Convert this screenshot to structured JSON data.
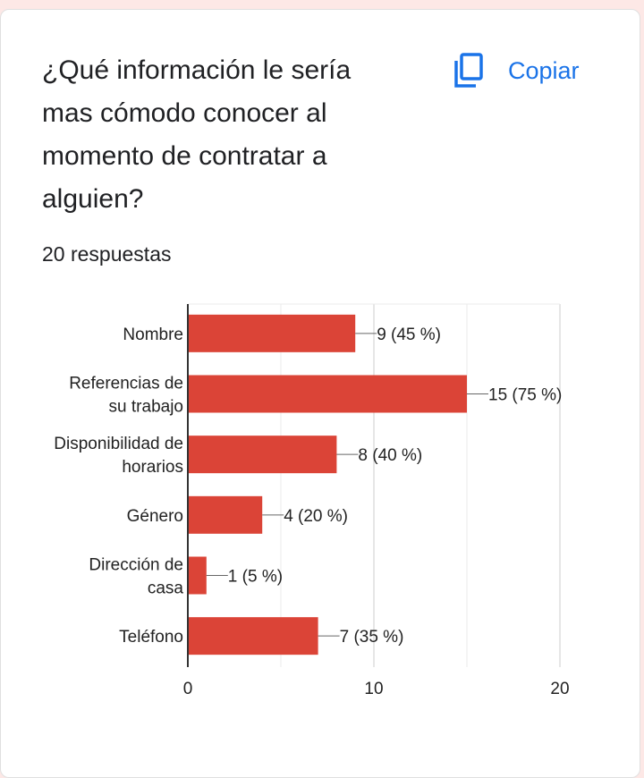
{
  "question": {
    "title": "¿Qué información le sería mas cómodo conocer al momento de contratar a alguien?",
    "responses": "20 respuestas",
    "copy_label": "Copiar",
    "copy_icon": "copy-icon"
  },
  "colors": {
    "bar": "#db4437",
    "accent": "#1a73e8"
  },
  "chart_data": {
    "type": "bar",
    "orientation": "horizontal",
    "categories": [
      [
        "Nombre"
      ],
      [
        "Referencias de",
        "su trabajo"
      ],
      [
        "Disponibilidad de",
        "horarios"
      ],
      [
        "Género"
      ],
      [
        "Dirección de",
        "casa"
      ],
      [
        "Teléfono"
      ]
    ],
    "values": [
      9,
      15,
      8,
      4,
      1,
      7
    ],
    "data_labels": [
      "9 (45 %)",
      "15 (75 %)",
      "8 (40 %)",
      "4 (20 %)",
      "1 (5 %)",
      "7 (35 %)"
    ],
    "xlim": [
      0,
      20
    ],
    "xticks": [
      "0",
      "10",
      "20"
    ],
    "grid": true
  }
}
